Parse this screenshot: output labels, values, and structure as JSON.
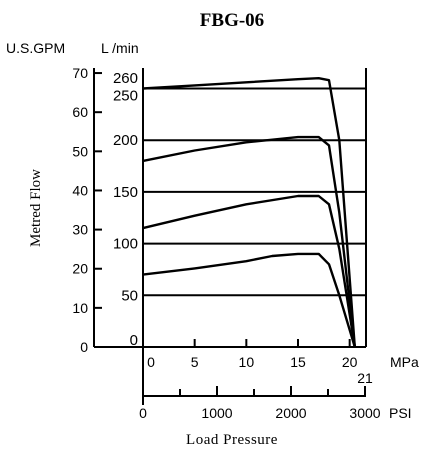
{
  "chart_data": {
    "type": "line",
    "title": "FBG-06",
    "ylabel": "Metred Flow",
    "xlabel": "Load Pressure",
    "y_units_left": "U.S.GPM",
    "y_units_right": "L /min",
    "x_units_mpa": "MPa",
    "x_units_psi": "PSI",
    "ylim_lmin": [
      0,
      265
    ],
    "xlim_mpa": [
      0,
      21
    ],
    "gpm_ticks": [
      "0",
      "10",
      "20",
      "30",
      "40",
      "50",
      "60",
      "70"
    ],
    "gpm_tick_values_lmin": [
      0,
      37.85,
      75.7,
      113.55,
      151.4,
      189.25,
      227.1,
      264.95
    ],
    "lmin_ticks": [
      "0",
      "50",
      "100",
      "150",
      "200",
      "250",
      "260"
    ],
    "lmin_tick_values": [
      0,
      50,
      100,
      150,
      200,
      250,
      260
    ],
    "mpa_ticks": [
      "0",
      "5",
      "10",
      "15",
      "20",
      "21"
    ],
    "mpa_tick_values": [
      0,
      5,
      10,
      15,
      20,
      21
    ],
    "psi_ticks": [
      "0",
      "1000",
      "2000",
      "3000"
    ],
    "psi_tick_values": [
      0,
      1000,
      2000,
      3000
    ],
    "series": [
      {
        "x": [
          0,
          5,
          10,
          15,
          17,
          18,
          19,
          20.5
        ],
        "y": [
          250,
          253,
          256,
          259,
          260,
          258,
          200,
          0
        ]
      },
      {
        "x": [
          0,
          5,
          10,
          15,
          17,
          18,
          19,
          20.5
        ],
        "y": [
          180,
          190,
          198,
          203,
          203,
          195,
          130,
          0
        ]
      },
      {
        "x": [
          0,
          5,
          10,
          15,
          17,
          18,
          19,
          20.5
        ],
        "y": [
          115,
          127,
          138,
          146,
          146,
          138,
          95,
          0
        ]
      },
      {
        "x": [
          0,
          5,
          10,
          12.5,
          15,
          17,
          18,
          19,
          20.5
        ],
        "y": [
          70,
          76,
          83,
          88,
          90,
          90,
          80,
          50,
          0
        ]
      }
    ]
  }
}
